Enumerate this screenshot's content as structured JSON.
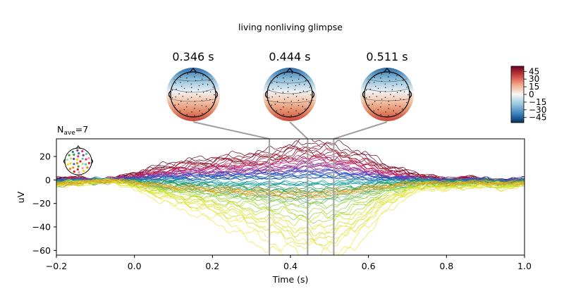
{
  "figure": {
    "title": "living nonliving glimpse",
    "nave_label": "N",
    "nave_sub": "ave",
    "nave_value": "=7"
  },
  "topomaps": [
    {
      "time": 0.346,
      "label": "0.346 s"
    },
    {
      "time": 0.444,
      "label": "0.444 s"
    },
    {
      "time": 0.511,
      "label": "0.511 s"
    }
  ],
  "colorbar": {
    "ticks": [
      45,
      30,
      15,
      0,
      -15,
      -30,
      -45
    ],
    "tick_labels": [
      "45",
      "30",
      "15",
      "0",
      "−15",
      "−30",
      "−45"
    ],
    "range": [
      -55,
      55
    ],
    "colormap": "RdBu_r",
    "colors": {
      "pos": "#67001f",
      "zero": "#f7f7f7",
      "neg": "#053061"
    }
  },
  "chart_data": {
    "type": "line",
    "title": "living nonliving glimpse",
    "xlabel": "Time (s)",
    "ylabel": "uV",
    "xlim": [
      -0.2,
      1.0
    ],
    "ylim": [
      -64,
      35
    ],
    "xticks": [
      -0.2,
      0.0,
      0.2,
      0.4,
      0.6,
      0.8,
      1.0
    ],
    "xtick_labels": [
      "−0.2",
      "0.0",
      "0.2",
      "0.4",
      "0.6",
      "0.8",
      "1.0"
    ],
    "yticks": [
      20,
      0,
      -20,
      -40,
      -60
    ],
    "ytick_labels": [
      "20",
      "0",
      "−20",
      "−40",
      "−60"
    ],
    "grid": false,
    "legend": "sensor-location inset, top-left",
    "highlight_times": [
      0.346,
      0.444,
      0.511
    ],
    "channel_count": 64,
    "x": [
      -0.2,
      -0.15,
      -0.1,
      -0.05,
      0.0,
      0.05,
      0.1,
      0.15,
      0.2,
      0.25,
      0.3,
      0.35,
      0.4,
      0.45,
      0.5,
      0.55,
      0.6,
      0.65,
      0.7,
      0.75,
      0.8,
      0.85,
      0.9,
      0.95,
      1.0
    ],
    "series": [
      {
        "color": "#67001f",
        "values": [
          1,
          2,
          -1,
          1,
          5,
          9,
          12,
          14,
          15,
          17,
          18,
          20,
          24,
          28,
          25,
          22,
          17,
          10,
          6,
          3,
          0,
          2,
          0,
          -1,
          1
        ]
      },
      {
        "color": "#b2182b",
        "values": [
          0,
          1,
          -1,
          0,
          3,
          6,
          9,
          11,
          12,
          14,
          15,
          17,
          20,
          22,
          20,
          17,
          12,
          7,
          4,
          2,
          -1,
          1,
          0,
          -2,
          0
        ]
      },
      {
        "color": "#c51b7d",
        "values": [
          0,
          1,
          0,
          1,
          3,
          5,
          7,
          8,
          9,
          10,
          11,
          12,
          14,
          16,
          15,
          13,
          9,
          5,
          3,
          1,
          0,
          1,
          -1,
          -1,
          0
        ]
      },
      {
        "color": "#7b3294",
        "values": [
          -1,
          0,
          -1,
          0,
          2,
          4,
          5,
          6,
          6,
          7,
          8,
          8,
          10,
          12,
          11,
          9,
          6,
          3,
          2,
          1,
          -1,
          0,
          -1,
          -2,
          0
        ]
      },
      {
        "color": "#3f4fcf",
        "values": [
          0,
          0,
          -1,
          0,
          1,
          2,
          3,
          3,
          4,
          4,
          5,
          5,
          6,
          7,
          6,
          5,
          3,
          2,
          1,
          0,
          -1,
          0,
          -1,
          -1,
          0
        ]
      },
      {
        "color": "#2166ac",
        "values": [
          -1,
          0,
          0,
          0,
          0,
          1,
          1,
          1,
          2,
          2,
          2,
          2,
          3,
          3,
          3,
          2,
          1,
          1,
          0,
          0,
          -1,
          0,
          0,
          -1,
          0
        ]
      },
      {
        "color": "#1b9e9e",
        "values": [
          -2,
          -1,
          -1,
          0,
          -1,
          -1,
          -1,
          -2,
          -2,
          -3,
          -3,
          -3,
          -3,
          -3,
          -3,
          -2,
          -2,
          -1,
          -1,
          0,
          -2,
          -1,
          -1,
          -2,
          -1
        ]
      },
      {
        "color": "#1a9850",
        "values": [
          -3,
          -2,
          -1,
          -1,
          -2,
          -3,
          -4,
          -5,
          -6,
          -7,
          -8,
          -9,
          -9,
          -10,
          -9,
          -8,
          -6,
          -4,
          -3,
          -2,
          -3,
          -2,
          -2,
          -3,
          -2
        ]
      },
      {
        "color": "#66bd63",
        "values": [
          -3,
          -2,
          -2,
          -1,
          -3,
          -5,
          -7,
          -8,
          -10,
          -11,
          -13,
          -14,
          -15,
          -16,
          -15,
          -13,
          -10,
          -7,
          -5,
          -3,
          -4,
          -3,
          -3,
          -4,
          -3
        ]
      },
      {
        "color": "#9bd23c",
        "values": [
          -4,
          -3,
          -2,
          -1,
          -4,
          -7,
          -10,
          -12,
          -14,
          -17,
          -19,
          -21,
          -24,
          -27,
          -26,
          -22,
          -16,
          -10,
          -7,
          -4,
          -5,
          -4,
          -4,
          -5,
          -3
        ]
      },
      {
        "color": "#c8e01e",
        "values": [
          -4,
          -3,
          -2,
          -1,
          -5,
          -9,
          -13,
          -17,
          -20,
          -24,
          -28,
          -32,
          -38,
          -43,
          -41,
          -35,
          -25,
          -15,
          -9,
          -5,
          -6,
          -5,
          -4,
          -6,
          -3
        ]
      },
      {
        "color": "#f0e442",
        "values": [
          -5,
          -3,
          -2,
          -2,
          -6,
          -12,
          -17,
          -22,
          -27,
          -33,
          -40,
          -46,
          -52,
          -57,
          -55,
          -48,
          -34,
          -20,
          -11,
          -6,
          -7,
          -5,
          -5,
          -6,
          -4
        ]
      },
      {
        "color": "#e8a020",
        "values": [
          -3,
          -2,
          -1,
          0,
          -2,
          -4,
          -6,
          -7,
          -8,
          -9,
          -10,
          -11,
          -12,
          -12,
          -11,
          -9,
          -7,
          -5,
          -3,
          -2,
          -3,
          -2,
          -2,
          -3,
          -2
        ]
      }
    ]
  }
}
